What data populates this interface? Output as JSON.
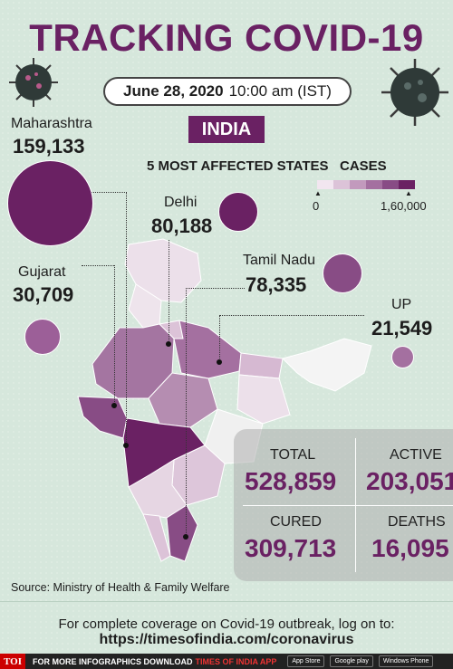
{
  "title": "TRACKING COVID-19",
  "date": "June 28, 2020",
  "time": "10:00 am (IST)",
  "country": "INDIA",
  "subtitle": "5 MOST AFFECTED STATES",
  "legend": {
    "label": "CASES",
    "min": "0",
    "max": "1,60,000"
  },
  "states": [
    {
      "name": "Maharashtra",
      "cases": "159,133"
    },
    {
      "name": "Delhi",
      "cases": "80,188"
    },
    {
      "name": "Tamil Nadu",
      "cases": "78,335"
    },
    {
      "name": "Gujarat",
      "cases": "30,709"
    },
    {
      "name": "UP",
      "cases": "21,549"
    }
  ],
  "stats": {
    "total_label": "TOTAL",
    "total": "528,859",
    "active_label": "ACTIVE",
    "active": "203,051",
    "cured_label": "CURED",
    "cured": "309,713",
    "deaths_label": "DEATHS",
    "deaths": "16,095"
  },
  "source": "Source: Ministry of Health & Family Welfare",
  "footer": {
    "line1": "For complete coverage on Covid-19 outbreak, log on to:",
    "url": "https://timesofindia.com/coronavirus"
  },
  "bottom_bar": {
    "logo": "TOI",
    "text": "FOR MORE  INFOGRAPHICS DOWNLOAD",
    "app": "TIMES OF INDIA APP",
    "stores": [
      "App Store",
      "Google play",
      "Windows Phone"
    ]
  },
  "colors": {
    "accent": "#6a2163",
    "background": "#d6e7dc"
  }
}
